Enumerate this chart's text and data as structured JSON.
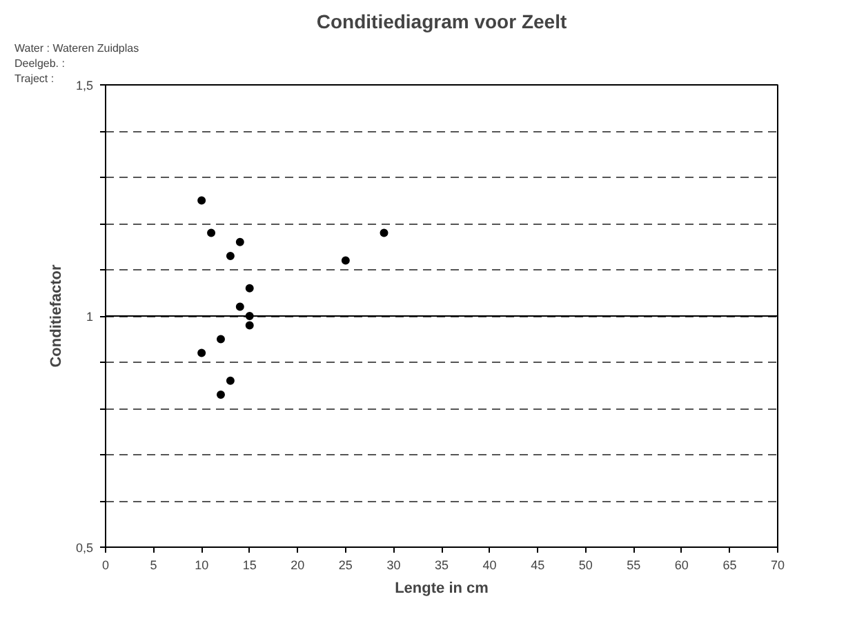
{
  "chart_data": {
    "type": "scatter",
    "title": "Conditiediagram voor Zeelt",
    "xlabel": "Lengte in cm",
    "ylabel": "Conditiefactor",
    "annotations": [
      "Water     : Wateren Zuidplas",
      "Deelgeb. :",
      "Traject    :"
    ],
    "x": [
      10,
      11,
      14,
      13,
      25,
      29,
      15,
      14,
      15,
      15,
      12,
      10,
      13,
      12
    ],
    "values": [
      1.25,
      1.18,
      1.16,
      1.13,
      1.12,
      1.18,
      1.06,
      1.02,
      1.0,
      0.98,
      0.95,
      0.92,
      0.86,
      0.83
    ],
    "color": "#000000",
    "marker": "circle",
    "xlim": [
      0,
      70
    ],
    "xticks": [
      0,
      5,
      10,
      15,
      20,
      25,
      30,
      35,
      40,
      45,
      50,
      55,
      60,
      65,
      70
    ],
    "ylim": [
      0.5,
      1.5
    ],
    "yticks": [
      {
        "value": 0.5,
        "label": "0,5"
      },
      {
        "value": 0.6,
        "label": null
      },
      {
        "value": 0.7,
        "label": null
      },
      {
        "value": 0.8,
        "label": null
      },
      {
        "value": 0.9,
        "label": null
      },
      {
        "value": 1,
        "label": "1"
      },
      {
        "value": 1.1,
        "label": null
      },
      {
        "value": 1.2,
        "label": null
      },
      {
        "value": 1.3,
        "label": null
      },
      {
        "value": 1.4,
        "label": null
      },
      {
        "value": 1.5,
        "label": "1,5"
      }
    ],
    "grid": "y",
    "ref_lines": [
      {
        "axis": "y",
        "value": 1,
        "color": "#000000",
        "line_style": "solid"
      }
    ]
  }
}
